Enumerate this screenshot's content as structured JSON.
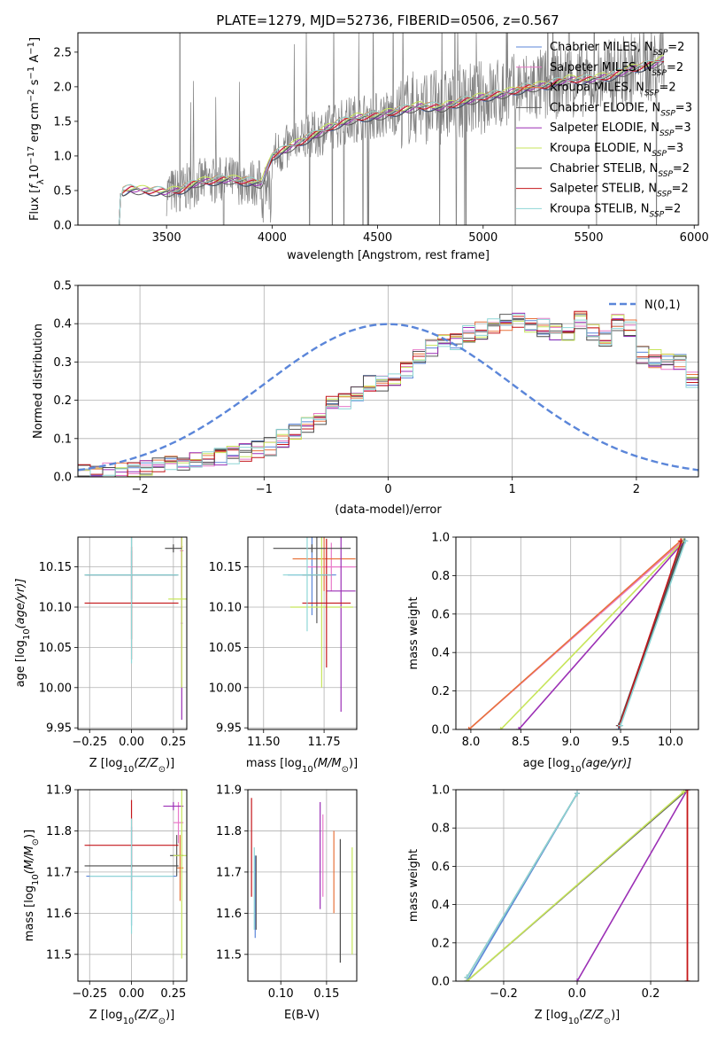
{
  "figure": {
    "title": "PLATE=1279, MJD=52736, FIBERID=0506, z=0.567"
  },
  "colors": {
    "Chabrier MILES": "#5b86d9",
    "Salpeter MILES": "#e879c9",
    "Kroupa MILES": "#e8733c",
    "Chabrier ELODIE": "#5a5a5a",
    "Salpeter ELODIE": "#9b2fb5",
    "Kroupa ELODIE": "#c7e55b",
    "Chabrier STELIB": "#4a4a4a",
    "Salpeter STELIB": "#c4171b",
    "Kroupa STELIB": "#8ed6d6",
    "observed": "#808080",
    "normal": "#5b86d9"
  },
  "chart_data": [
    {
      "id": "spectrum",
      "type": "line",
      "xlabel": "wavelength [Angstrom, rest frame]",
      "ylabel_parts": [
        "Flux [",
        "f",
        "λ",
        "10",
        "−17",
        " erg cm",
        "−2",
        " s",
        "−1",
        " A",
        "−1",
        "]"
      ],
      "xlim": [
        3080,
        6020
      ],
      "ylim": [
        0,
        2.78
      ],
      "xticks": [
        3500,
        4000,
        4500,
        5000,
        5500,
        6000
      ],
      "yticks": [
        0.0,
        0.5,
        1.0,
        1.5,
        2.0,
        2.5
      ],
      "legend": [
        {
          "name": "Chabrier MILES",
          "nssp": "2"
        },
        {
          "name": "Salpeter MILES",
          "nssp": "2"
        },
        {
          "name": "Kroupa MILES",
          "nssp": "2"
        },
        {
          "name": "Chabrier ELODIE",
          "nssp": "3"
        },
        {
          "name": "Salpeter ELODIE",
          "nssp": "3"
        },
        {
          "name": "Kroupa ELODIE",
          "nssp": "3"
        },
        {
          "name": "Chabrier STELIB",
          "nssp": "2"
        },
        {
          "name": "Salpeter STELIB",
          "nssp": "2"
        },
        {
          "name": "Kroupa STELIB",
          "nssp": "2"
        }
      ],
      "legend_loc": "upper right",
      "model_continuum": {
        "x": [
          3280,
          3330,
          3400,
          3500,
          3560,
          3650,
          3800,
          3950,
          4000,
          4100,
          4200,
          4300,
          4400,
          4500,
          4600,
          4700,
          4800,
          4900,
          5000,
          5100,
          5200,
          5300,
          5400,
          5500,
          5600,
          5700,
          5800,
          5860
        ],
        "y": [
          0.48,
          0.52,
          0.5,
          0.48,
          0.5,
          0.62,
          0.66,
          0.6,
          1.0,
          1.15,
          1.3,
          1.45,
          1.55,
          1.58,
          1.65,
          1.72,
          1.7,
          1.78,
          1.85,
          1.9,
          1.98,
          2.02,
          2.1,
          2.1,
          2.15,
          2.25,
          2.32,
          2.4
        ]
      },
      "observed_range": [
        3500,
        5860
      ]
    },
    {
      "id": "residuals",
      "type": "step",
      "xlabel": "(data-model)/error",
      "ylabel": "Normed distribution",
      "xlim": [
        -2.5,
        2.5
      ],
      "ylim": [
        0,
        0.5
      ],
      "xticks": [
        -2,
        -1,
        0,
        1,
        2
      ],
      "yticks": [
        0.0,
        0.1,
        0.2,
        0.3,
        0.4,
        0.5
      ],
      "bin_width": 0.1,
      "bins_start": -2.5,
      "base_hist": [
        0.01,
        0.012,
        0.015,
        0.018,
        0.02,
        0.025,
        0.03,
        0.032,
        0.035,
        0.04,
        0.045,
        0.05,
        0.058,
        0.062,
        0.07,
        0.08,
        0.1,
        0.12,
        0.14,
        0.16,
        0.19,
        0.2,
        0.22,
        0.24,
        0.245,
        0.26,
        0.28,
        0.32,
        0.34,
        0.36,
        0.35,
        0.37,
        0.38,
        0.4,
        0.4,
        0.41,
        0.4,
        0.39,
        0.38,
        0.37,
        0.41,
        0.38,
        0.36,
        0.4,
        0.39,
        0.32,
        0.31,
        0.3,
        0.3,
        0.25,
        0.26,
        0.24,
        0.2,
        0.18,
        0.17,
        0.16,
        0.14,
        0.12,
        0.1,
        0.08,
        0.1,
        0.08,
        0.09,
        0.07,
        0.06,
        0.06,
        0.05,
        0.05,
        0.04,
        0.04,
        0.03,
        0.04
      ],
      "legend": [
        {
          "label": "N(0,1)"
        }
      ],
      "legend_loc": "upper right",
      "series_order": [
        "Chabrier MILES",
        "Salpeter MILES",
        "Kroupa MILES",
        "Chabrier ELODIE",
        "Salpeter ELODIE",
        "Kroupa ELODIE",
        "Chabrier STELIB",
        "Salpeter STELIB",
        "Kroupa STELIB"
      ]
    },
    {
      "id": "age_vs_Z",
      "type": "errorbar",
      "xlabel_parts": [
        "Z [log",
        "10",
        "(Z/Z",
        "⊙",
        ")]"
      ],
      "ylabel_parts": [
        "age  [log",
        "10",
        "(age/yr)]"
      ],
      "xlim": [
        -0.32,
        0.33
      ],
      "ylim": [
        9.948,
        10.187
      ],
      "xticks": [
        -0.25,
        0.0,
        0.25
      ],
      "xticklabels": [
        "−0.25",
        "0.00",
        "0.25"
      ],
      "yticks": [
        9.95,
        10.0,
        10.05,
        10.1,
        10.15
      ],
      "points": [
        {
          "series": "Chabrier MILES",
          "x": 0.0,
          "y": 10.14,
          "xerr": 0.27,
          "yerr": 0.03
        },
        {
          "series": "Salpeter MILES",
          "x": 0.3,
          "y": 10.17,
          "xerr": 0.01,
          "yerr": 0.05
        },
        {
          "series": "Kroupa MILES",
          "x": 0.3,
          "y": 10.175,
          "xerr": 0.005,
          "yerr": 0.06
        },
        {
          "series": "Chabrier ELODIE",
          "x": 0.0,
          "y": 10.14,
          "xerr": 0.28,
          "yerr": 0.08
        },
        {
          "series": "Salpeter ELODIE",
          "x": 0.3,
          "y": 10.08,
          "xerr": 0.005,
          "yerr": 0.12
        },
        {
          "series": "Kroupa ELODIE",
          "x": 0.3,
          "y": 10.11,
          "xerr": 0.08,
          "yerr": 0.11
        },
        {
          "series": "Chabrier STELIB",
          "x": 0.25,
          "y": 10.173,
          "xerr": 0.05,
          "yerr": 0.005
        },
        {
          "series": "Salpeter STELIB",
          "x": 0.0,
          "y": 10.105,
          "xerr": 0.28,
          "yerr": 0.07
        },
        {
          "series": "Kroupa STELIB",
          "x": 0.0,
          "y": 10.14,
          "xerr": 0.28,
          "yerr": 0.11
        }
      ]
    },
    {
      "id": "age_vs_mass",
      "type": "errorbar",
      "xlabel_parts": [
        "mass [log",
        "10",
        "(M/M",
        "⊙",
        ")]"
      ],
      "ylabel_parts": [],
      "xlim": [
        11.435,
        11.885
      ],
      "ylim": [
        9.948,
        10.187
      ],
      "xticks": [
        11.5,
        11.75
      ],
      "xticklabels": [
        "11.50",
        "11.75"
      ],
      "yticks": [
        9.95,
        10.0,
        10.05,
        10.1,
        10.15
      ],
      "points": [
        {
          "series": "Chabrier MILES",
          "x": 11.7,
          "y": 10.14,
          "xerr": 0.1,
          "yerr": 0.05
        },
        {
          "series": "Salpeter MILES",
          "x": 11.78,
          "y": 10.15,
          "xerr": 0.1,
          "yerr": 0.03
        },
        {
          "series": "Kroupa MILES",
          "x": 11.75,
          "y": 10.16,
          "xerr": 0.13,
          "yerr": 0.04
        },
        {
          "series": "Chabrier ELODIE",
          "x": 11.72,
          "y": 10.14,
          "xerr": 0.06,
          "yerr": 0.06
        },
        {
          "series": "Salpeter ELODIE",
          "x": 11.82,
          "y": 10.12,
          "xerr": 0.06,
          "yerr": 0.15
        },
        {
          "series": "Kroupa ELODIE",
          "x": 11.74,
          "y": 10.1,
          "xerr": 0.13,
          "yerr": 0.1
        },
        {
          "series": "Chabrier STELIB",
          "x": 11.7,
          "y": 10.173,
          "xerr": 0.16,
          "yerr": 0.005
        },
        {
          "series": "Salpeter STELIB",
          "x": 11.76,
          "y": 10.105,
          "xerr": 0.1,
          "yerr": 0.08
        },
        {
          "series": "Kroupa STELIB",
          "x": 11.68,
          "y": 10.14,
          "xerr": 0.1,
          "yerr": 0.07
        }
      ]
    },
    {
      "id": "cum_age",
      "type": "line",
      "xlabel_parts": [
        "age  [log",
        "10",
        "(age/yr)]"
      ],
      "ylabel": "mass weight",
      "xlim": [
        7.85,
        10.28
      ],
      "ylim": [
        0,
        1
      ],
      "xticks": [
        8.0,
        8.5,
        9.0,
        9.5,
        10.0
      ],
      "xticklabels": [
        "8.0",
        "8.5",
        "9.0",
        "9.5",
        "10.0"
      ],
      "yticks": [
        0.0,
        0.2,
        0.4,
        0.6,
        0.8,
        1.0
      ],
      "series": [
        {
          "name": "Chabrier MILES",
          "x": [
            9.48,
            10.12
          ],
          "y": [
            0.0,
            0.97
          ]
        },
        {
          "name": "Salpeter MILES",
          "x": [
            7.98,
            10.1
          ],
          "y": [
            0.0,
            0.97
          ]
        },
        {
          "name": "Kroupa MILES",
          "x": [
            7.98,
            10.1
          ],
          "y": [
            0.0,
            0.98
          ]
        },
        {
          "name": "Chabrier ELODIE",
          "x": [
            9.48,
            10.12
          ],
          "y": [
            0.02,
            0.97
          ]
        },
        {
          "name": "Salpeter ELODIE",
          "x": [
            8.48,
            10.14
          ],
          "y": [
            0.0,
            0.98
          ]
        },
        {
          "name": "Kroupa ELODIE",
          "x": [
            8.3,
            10.13
          ],
          "y": [
            0.0,
            0.98
          ]
        },
        {
          "name": "Chabrier STELIB",
          "x": [
            9.49,
            10.14
          ],
          "y": [
            0.02,
            0.98
          ]
        },
        {
          "name": "Salpeter STELIB",
          "x": [
            9.49,
            10.11
          ],
          "y": [
            0.02,
            0.98
          ]
        },
        {
          "name": "Kroupa STELIB",
          "x": [
            9.5,
            10.15
          ],
          "y": [
            0.02,
            0.98
          ]
        }
      ]
    },
    {
      "id": "mass_vs_Z",
      "type": "errorbar",
      "xlabel_parts": [
        "Z [log",
        "10",
        "(Z/Z",
        "⊙",
        ")]"
      ],
      "ylabel_parts": [
        "mass [log",
        "10",
        "(M/M",
        "⊙",
        ")]"
      ],
      "xlim": [
        -0.32,
        0.33
      ],
      "ylim": [
        11.435,
        11.9
      ],
      "xticks": [
        -0.25,
        0.0,
        0.25
      ],
      "xticklabels": [
        "−0.25",
        "0.00",
        "0.25"
      ],
      "yticks": [
        11.5,
        11.6,
        11.7,
        11.8,
        11.9
      ],
      "points": [
        {
          "series": "Chabrier MILES",
          "x": 0.0,
          "y": 11.69,
          "xerr": 0.27,
          "yerr": 0.12
        },
        {
          "series": "Salpeter MILES",
          "x": 0.28,
          "y": 11.82,
          "xerr": 0.03,
          "yerr": 0.05
        },
        {
          "series": "Kroupa MILES",
          "x": 0.29,
          "y": 11.71,
          "xerr": 0.02,
          "yerr": 0.08
        },
        {
          "series": "Chabrier ELODIE",
          "x": 0.27,
          "y": 11.74,
          "xerr": 0.04,
          "yerr": 0.05
        },
        {
          "series": "Salpeter ELODIE",
          "x": 0.25,
          "y": 11.86,
          "xerr": 0.06,
          "yerr": 0.01
        },
        {
          "series": "Kroupa ELODIE",
          "x": 0.3,
          "y": 11.74,
          "xerr": 0.05,
          "yerr": 0.25
        },
        {
          "series": "Chabrier STELIB",
          "x": 0.0,
          "y": 11.715,
          "xerr": 0.28,
          "yerr": 0.005
        },
        {
          "series": "Salpeter STELIB",
          "x": 0.0,
          "y": 11.765,
          "xerr": 0.28,
          "yerr": 0.11
        },
        {
          "series": "Kroupa STELIB",
          "x": 0.0,
          "y": 11.69,
          "xerr": 0.25,
          "yerr": 0.14
        }
      ]
    },
    {
      "id": "mass_vs_ebv",
      "type": "errorbar",
      "xlabel": "E(B-V)",
      "ylabel_parts": [],
      "xlim": [
        0.064,
        0.183
      ],
      "ylim": [
        11.435,
        11.9
      ],
      "xticks": [
        0.1,
        0.15
      ],
      "xticklabels": [
        "0.10",
        "0.15"
      ],
      "yticks": [
        11.5,
        11.6,
        11.7,
        11.8,
        11.9
      ],
      "points": [
        {
          "series": "Chabrier MILES",
          "x": 0.072,
          "y": 11.64,
          "xerr": 0.0,
          "yerr": 0.1
        },
        {
          "series": "Salpeter MILES",
          "x": 0.146,
          "y": 11.74,
          "xerr": 0.0,
          "yerr": 0.1
        },
        {
          "series": "Kroupa MILES",
          "x": 0.158,
          "y": 11.7,
          "xerr": 0.0,
          "yerr": 0.1
        },
        {
          "series": "Chabrier ELODIE",
          "x": 0.073,
          "y": 11.65,
          "xerr": 0.0,
          "yerr": 0.09
        },
        {
          "series": "Salpeter ELODIE",
          "x": 0.143,
          "y": 11.74,
          "xerr": 0.0,
          "yerr": 0.13
        },
        {
          "series": "Kroupa ELODIE",
          "x": 0.178,
          "y": 11.63,
          "xerr": 0.0,
          "yerr": 0.13
        },
        {
          "series": "Chabrier STELIB",
          "x": 0.165,
          "y": 11.63,
          "xerr": 0.0,
          "yerr": 0.15
        },
        {
          "series": "Salpeter STELIB",
          "x": 0.068,
          "y": 11.76,
          "xerr": 0.0,
          "yerr": 0.12
        },
        {
          "series": "Kroupa STELIB",
          "x": 0.071,
          "y": 11.66,
          "xerr": 0.0,
          "yerr": 0.1
        }
      ]
    },
    {
      "id": "cum_Z",
      "type": "line",
      "xlabel_parts": [
        "Z [log",
        "10",
        "(Z/Z",
        "⊙",
        ")]"
      ],
      "ylabel": "mass weight",
      "xlim": [
        -0.33,
        0.33
      ],
      "ylim": [
        0,
        1
      ],
      "xticks": [
        -0.2,
        0.0,
        0.2
      ],
      "xticklabels": [
        "−0.2",
        "0.0",
        "0.2"
      ],
      "yticks": [
        0.0,
        0.2,
        0.4,
        0.6,
        0.8,
        1.0
      ],
      "series": [
        {
          "name": "Chabrier MILES",
          "x": [
            -0.3,
            0.0
          ],
          "y": [
            0.0,
            0.98
          ]
        },
        {
          "name": "Salpeter MILES",
          "x": [
            0.3,
            0.3
          ],
          "y": [
            0.0,
            1.0
          ]
        },
        {
          "name": "Kroupa MILES",
          "x": [
            0.3,
            0.3
          ],
          "y": [
            0.0,
            1.0
          ]
        },
        {
          "name": "Chabrier ELODIE",
          "x": [
            -0.3,
            0.3
          ],
          "y": [
            0.0,
            1.0
          ]
        },
        {
          "name": "Salpeter ELODIE",
          "x": [
            0.0,
            0.3
          ],
          "y": [
            0.0,
            1.0
          ]
        },
        {
          "name": "Kroupa ELODIE",
          "x": [
            -0.3,
            0.29
          ],
          "y": [
            0.0,
            0.99
          ]
        },
        {
          "name": "Chabrier STELIB",
          "x": [
            -0.3,
            0.0
          ],
          "y": [
            0.02,
            0.98
          ]
        },
        {
          "name": "Salpeter STELIB",
          "x": [
            0.3,
            0.3
          ],
          "y": [
            0.0,
            1.0
          ]
        },
        {
          "name": "Kroupa STELIB",
          "x": [
            -0.3,
            0.0
          ],
          "y": [
            0.02,
            0.98
          ]
        }
      ]
    }
  ]
}
